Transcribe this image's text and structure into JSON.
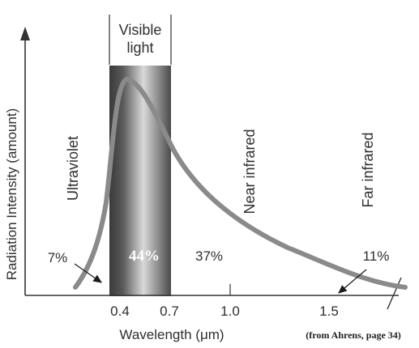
{
  "figure": {
    "visible_band_label_line1": "Visible",
    "visible_band_label_line2": "light",
    "ylabel": "Radiation Intensity (amount)",
    "xlabel": "Wavelength (μm)",
    "source_note": "(from Ahrens, page 34)",
    "x_ticks": [
      "0.4",
      "0.7",
      "1.0",
      "1.5"
    ],
    "region_labels": {
      "ultraviolet": "Ultraviolet",
      "near_infrared": "Near infrared",
      "far_infrared": "Far infrared"
    },
    "percentages": {
      "ultraviolet": "7%",
      "visible": "44%",
      "near_infrared": "37%",
      "far_infrared": "11%"
    },
    "colors": {
      "curve": "#8a8a8a",
      "axis": "#333333",
      "band_dark": "#3a3a3a",
      "band_light": "#d8d8d8"
    }
  }
}
